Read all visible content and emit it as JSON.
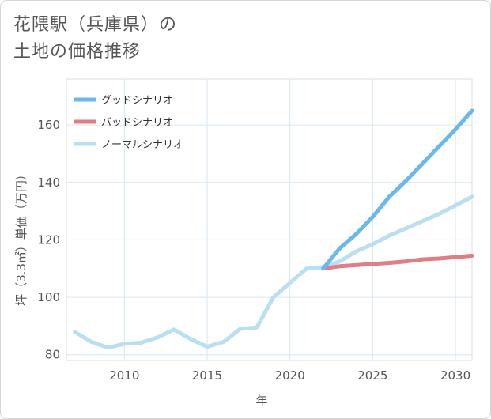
{
  "title": {
    "line1": "花隈駅（兵庫県）の",
    "line2": "土地の価格推移"
  },
  "chart_data": {
    "type": "line",
    "title": "花隈駅（兵庫県）の土地の価格推移",
    "xlabel": "年",
    "ylabel": "坪（3.3㎡）単価（万円）",
    "xlim": [
      2006.5,
      2031
    ],
    "ylim": [
      78,
      176
    ],
    "xticks": [
      2010,
      2015,
      2020,
      2025,
      2030
    ],
    "yticks": [
      80,
      100,
      120,
      140,
      160
    ],
    "grid": true,
    "legend_position": "top-left",
    "series": [
      {
        "name": "グッドシナリオ",
        "color": "#6ab8ec",
        "x": [
          2022,
          2023,
          2024,
          2025,
          2026,
          2027,
          2028,
          2029,
          2030,
          2031
        ],
        "values": [
          110.0,
          117.0,
          122.0,
          128.0,
          135.0,
          140.5,
          146.5,
          152.5,
          158.5,
          165.0
        ]
      },
      {
        "name": "バッドシナリオ",
        "color": "#de7e86",
        "x": [
          2022,
          2023,
          2024,
          2025,
          2026,
          2027,
          2028,
          2029,
          2030,
          2031
        ],
        "values": [
          110.0,
          110.8,
          111.2,
          111.6,
          112.0,
          112.5,
          113.2,
          113.5,
          114.0,
          114.5
        ]
      },
      {
        "name": "ノーマルシナリオ",
        "color": "#b9dff0",
        "x": [
          2007,
          2008,
          2009,
          2010,
          2011,
          2012,
          2013,
          2014,
          2015,
          2016,
          2017,
          2018,
          2019,
          2020,
          2021,
          2022,
          2023,
          2024,
          2025,
          2026,
          2027,
          2028,
          2029,
          2030,
          2031
        ],
        "values": [
          88.0,
          84.5,
          82.5,
          83.8,
          84.2,
          86.0,
          88.8,
          85.5,
          82.8,
          84.5,
          89.0,
          89.5,
          100.0,
          105.0,
          110.0,
          110.5,
          112.5,
          116.0,
          118.5,
          121.5,
          124.0,
          126.5,
          129.0,
          132.0,
          135.0
        ]
      }
    ]
  }
}
